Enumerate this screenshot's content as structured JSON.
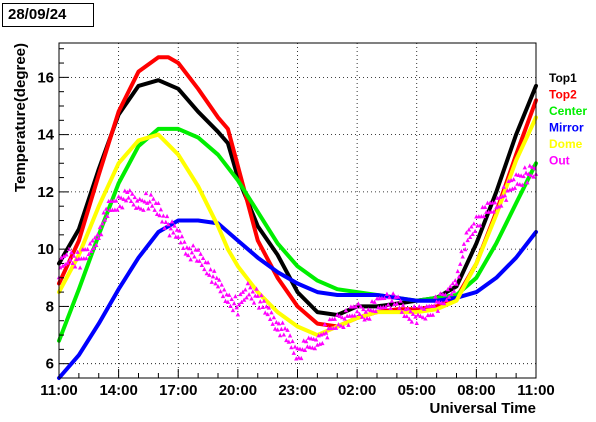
{
  "date_label": "28/09/24",
  "chart_data": {
    "type": "line",
    "title": "",
    "xlabel": "Universal Time",
    "ylabel": "Temperature(degree)",
    "xlim": [
      0,
      24
    ],
    "ylim": [
      5.5,
      17.2
    ],
    "grid": true,
    "legend_position": "right",
    "x_ticks": [
      {
        "x": 0,
        "label": "11:00"
      },
      {
        "x": 3,
        "label": "14:00"
      },
      {
        "x": 6,
        "label": "17:00"
      },
      {
        "x": 9,
        "label": "20:00"
      },
      {
        "x": 12,
        "label": "23:00"
      },
      {
        "x": 15,
        "label": "02:00"
      },
      {
        "x": 18,
        "label": "05:00"
      },
      {
        "x": 21,
        "label": "08:00"
      },
      {
        "x": 24,
        "label": "11:00"
      }
    ],
    "y_ticks": [
      6,
      8,
      10,
      12,
      14,
      16
    ],
    "series": [
      {
        "name": "Top1",
        "color": "#000000",
        "x": [
          0,
          1,
          2,
          3,
          4,
          5,
          6,
          7,
          8,
          8.5,
          9,
          10,
          11,
          12,
          13,
          14,
          15,
          16,
          17,
          18,
          19,
          20,
          21,
          22,
          23,
          24
        ],
        "y": [
          9.5,
          10.7,
          12.8,
          14.7,
          15.7,
          15.9,
          15.6,
          14.8,
          14.1,
          13.7,
          12.5,
          10.8,
          9.8,
          8.5,
          7.8,
          7.7,
          8.0,
          8.0,
          8.1,
          8.2,
          8.3,
          8.7,
          10.2,
          12.0,
          14.0,
          15.7
        ]
      },
      {
        "name": "Top2",
        "color": "#ff0000",
        "x": [
          0,
          1,
          2,
          3,
          4,
          5,
          5.5,
          6,
          7,
          8,
          8.5,
          9,
          10,
          11,
          12,
          13,
          14,
          15,
          16,
          17,
          18,
          19,
          20,
          21,
          22,
          23,
          24
        ],
        "y": [
          8.8,
          10.3,
          12.6,
          14.8,
          16.2,
          16.7,
          16.7,
          16.5,
          15.6,
          14.6,
          14.2,
          12.9,
          10.3,
          9.0,
          8.0,
          7.4,
          7.3,
          7.6,
          7.8,
          7.9,
          7.9,
          8.0,
          8.3,
          9.5,
          11.3,
          13.3,
          15.2
        ]
      },
      {
        "name": "Center",
        "color": "#00ee00",
        "x": [
          0,
          1,
          2,
          3,
          4,
          5,
          6,
          7,
          8,
          9,
          10,
          11,
          12,
          13,
          14,
          15,
          16,
          17,
          18,
          19,
          20,
          21,
          22,
          23,
          24
        ],
        "y": [
          6.8,
          8.6,
          10.5,
          12.3,
          13.6,
          14.2,
          14.2,
          13.9,
          13.3,
          12.4,
          11.3,
          10.2,
          9.4,
          8.9,
          8.6,
          8.5,
          8.4,
          8.3,
          8.2,
          8.3,
          8.4,
          9.0,
          10.2,
          11.6,
          13.0
        ]
      },
      {
        "name": "Mirror",
        "color": "#0000ff",
        "x": [
          0,
          1,
          2,
          3,
          4,
          5,
          6,
          7,
          8,
          9,
          10,
          11,
          12,
          13,
          14,
          15,
          16,
          17,
          18,
          19,
          20,
          21,
          22,
          23,
          24
        ],
        "y": [
          5.5,
          6.3,
          7.4,
          8.6,
          9.7,
          10.6,
          11.0,
          11.0,
          10.9,
          10.3,
          9.7,
          9.2,
          8.8,
          8.5,
          8.4,
          8.4,
          8.4,
          8.3,
          8.2,
          8.2,
          8.3,
          8.5,
          9.0,
          9.7,
          10.6
        ]
      },
      {
        "name": "Dome",
        "color": "#ffff00",
        "x": [
          0,
          1,
          2,
          3,
          4,
          5,
          6,
          7,
          8,
          8.5,
          9,
          10,
          11,
          12,
          13,
          14,
          15,
          16,
          17,
          18,
          19,
          20,
          21,
          22,
          23,
          24
        ],
        "y": [
          8.5,
          9.8,
          11.5,
          13.0,
          13.8,
          14.0,
          13.3,
          12.2,
          10.8,
          10.0,
          9.4,
          8.5,
          7.8,
          7.3,
          7.0,
          7.3,
          7.6,
          7.8,
          7.8,
          7.8,
          7.9,
          8.2,
          9.5,
          11.2,
          13.1,
          14.6
        ]
      },
      {
        "name": "Out",
        "color": "#ff00ff",
        "marker": "triangle",
        "x": [
          0,
          0.5,
          1,
          1.5,
          2,
          2.5,
          3,
          3.5,
          4,
          4.5,
          5,
          5.5,
          6,
          6.5,
          7,
          7.5,
          8,
          8.5,
          9,
          9.5,
          10,
          10.5,
          11,
          11.5,
          12,
          12.5,
          13,
          13.5,
          14,
          14.5,
          15,
          15.5,
          16,
          16.5,
          17,
          17.5,
          18,
          18.5,
          19,
          19.5,
          20,
          20.5,
          21,
          21.5,
          22,
          22.5,
          23,
          23.5,
          24
        ],
        "y": [
          9.3,
          9.8,
          9.6,
          9.9,
          10.6,
          11.4,
          11.7,
          11.8,
          11.6,
          11.7,
          11.4,
          10.8,
          10.5,
          10.0,
          9.7,
          9.4,
          8.7,
          8.3,
          8.0,
          8.6,
          8.3,
          7.8,
          7.4,
          6.9,
          6.4,
          6.6,
          6.8,
          7.2,
          7.5,
          7.6,
          7.9,
          7.8,
          8.0,
          8.3,
          8.1,
          7.8,
          7.7,
          7.8,
          8.1,
          8.3,
          9.0,
          10.3,
          11.0,
          11.3,
          11.6,
          12.0,
          12.4,
          12.6,
          12.7
        ]
      }
    ]
  }
}
